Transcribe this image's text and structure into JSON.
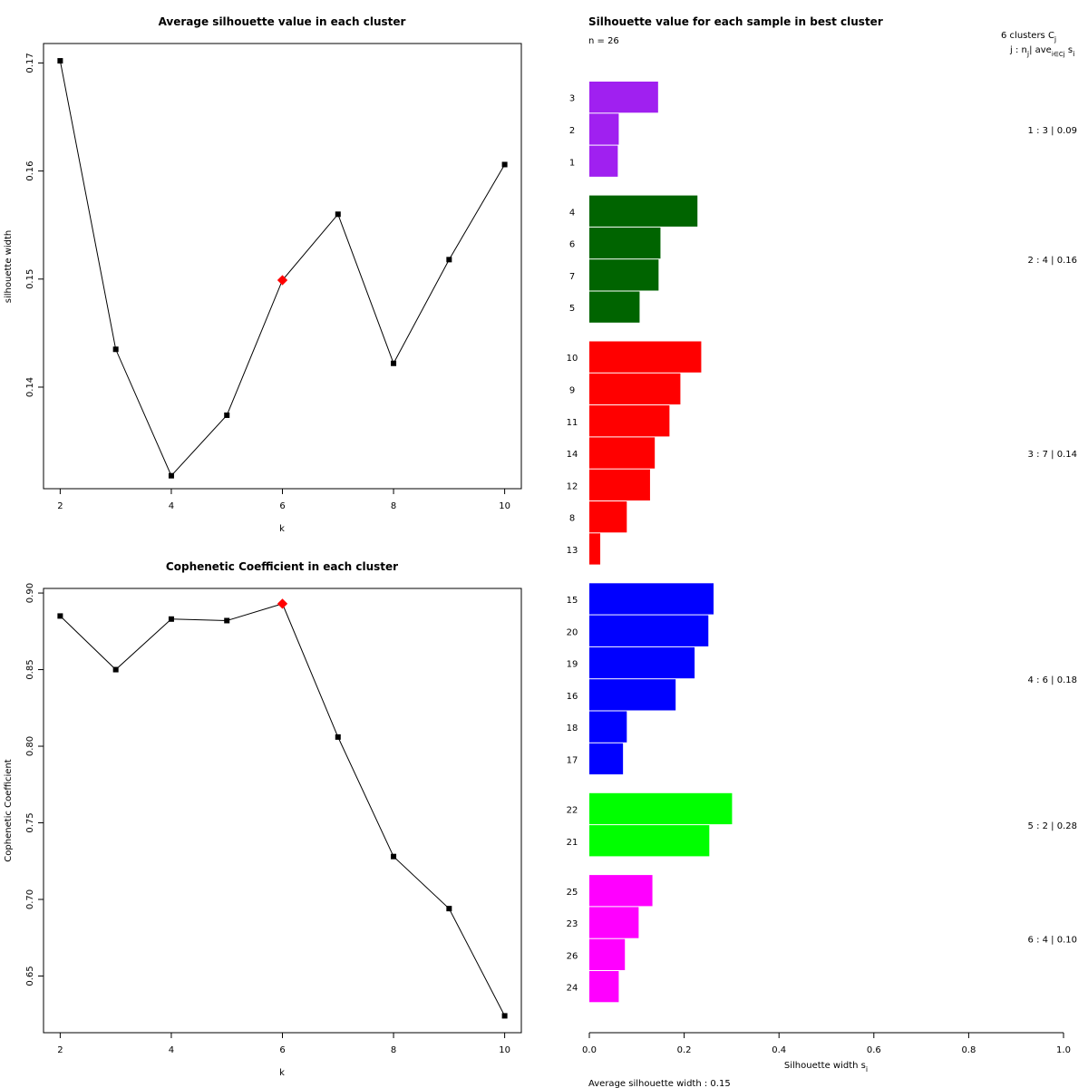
{
  "colors": {
    "line": "#000000",
    "highlight": "#ff0000"
  },
  "chart_data": [
    {
      "type": "line",
      "title": "Average silhouette value in each cluster",
      "xlabel": "k",
      "ylabel": "silhouette width",
      "x": [
        2,
        3,
        4,
        5,
        6,
        7,
        8,
        9,
        10
      ],
      "y": [
        0.1702,
        0.1435,
        0.1318,
        0.1374,
        0.1499,
        0.156,
        0.1422,
        0.1518,
        0.1606
      ],
      "highlight_x": 6,
      "xlim": [
        1.7,
        10.3
      ],
      "ylim": [
        0.1306,
        0.1718
      ],
      "xticks": [
        "2",
        "4",
        "6",
        "8",
        "10"
      ],
      "yticks": [
        "0.14",
        "0.15",
        "0.16",
        "0.17"
      ]
    },
    {
      "type": "line",
      "title": "Cophenetic Coefficient in each cluster",
      "xlabel": "k",
      "ylabel": "Cophenetic Coefficient",
      "x": [
        2,
        3,
        4,
        5,
        6,
        7,
        8,
        9,
        10
      ],
      "y": [
        0.885,
        0.85,
        0.883,
        0.882,
        0.893,
        0.806,
        0.728,
        0.694,
        0.624
      ],
      "highlight_x": 6,
      "xlim": [
        1.7,
        10.3
      ],
      "ylim": [
        0.613,
        0.903
      ],
      "xticks": [
        "2",
        "4",
        "6",
        "8",
        "10"
      ],
      "yticks": [
        "0.65",
        "0.70",
        "0.75",
        "0.80",
        "0.85",
        "0.90"
      ]
    },
    {
      "type": "bar",
      "orientation": "horizontal",
      "title": "Silhouette value for each sample in best cluster",
      "n_label": "n = 26",
      "legend_header": "6  clusters  C",
      "legend_header_sub": "j",
      "legend_subheader": "j :  n",
      "legend_subheader_mid": "| ave",
      "legend_subheader_end": " s",
      "legend_sub_j": "j",
      "legend_sub_icj": "i∈Cj",
      "legend_sub_i": "i",
      "xlabel": "Silhouette width  s",
      "xlabel_sub": "i",
      "xlim": [
        0,
        1
      ],
      "xticks": [
        "0.0",
        "0.2",
        "0.4",
        "0.6",
        "0.8",
        "1.0"
      ],
      "avg_label": "Average silhouette width :  0.15",
      "clusters": [
        {
          "summary": "1 :  3  |  0.09",
          "color": "#a020f0",
          "samples": [
            {
              "id": "3",
              "s": 0.145
            },
            {
              "id": "2",
              "s": 0.062
            },
            {
              "id": "1",
              "s": 0.06
            }
          ]
        },
        {
          "summary": "2 :  4  |  0.16",
          "color": "#006400",
          "samples": [
            {
              "id": "4",
              "s": 0.228
            },
            {
              "id": "6",
              "s": 0.15
            },
            {
              "id": "7",
              "s": 0.146
            },
            {
              "id": "5",
              "s": 0.106
            }
          ]
        },
        {
          "summary": "3 :  7  |  0.14",
          "color": "#ff0000",
          "samples": [
            {
              "id": "10",
              "s": 0.236
            },
            {
              "id": "9",
              "s": 0.192
            },
            {
              "id": "11",
              "s": 0.169
            },
            {
              "id": "14",
              "s": 0.138
            },
            {
              "id": "12",
              "s": 0.128
            },
            {
              "id": "8",
              "s": 0.079
            },
            {
              "id": "13",
              "s": 0.023
            }
          ]
        },
        {
          "summary": "4 :  6  |  0.18",
          "color": "#0000ff",
          "samples": [
            {
              "id": "15",
              "s": 0.262
            },
            {
              "id": "20",
              "s": 0.251
            },
            {
              "id": "19",
              "s": 0.222
            },
            {
              "id": "16",
              "s": 0.182
            },
            {
              "id": "18",
              "s": 0.079
            },
            {
              "id": "17",
              "s": 0.071
            }
          ]
        },
        {
          "summary": "5 :  2  |  0.28",
          "color": "#00ff00",
          "samples": [
            {
              "id": "22",
              "s": 0.301
            },
            {
              "id": "21",
              "s": 0.253
            }
          ]
        },
        {
          "summary": "6 :  4  |  0.10",
          "color": "#ff00ff",
          "samples": [
            {
              "id": "25",
              "s": 0.133
            },
            {
              "id": "23",
              "s": 0.104
            },
            {
              "id": "26",
              "s": 0.075
            },
            {
              "id": "24",
              "s": 0.062
            }
          ]
        }
      ]
    }
  ]
}
